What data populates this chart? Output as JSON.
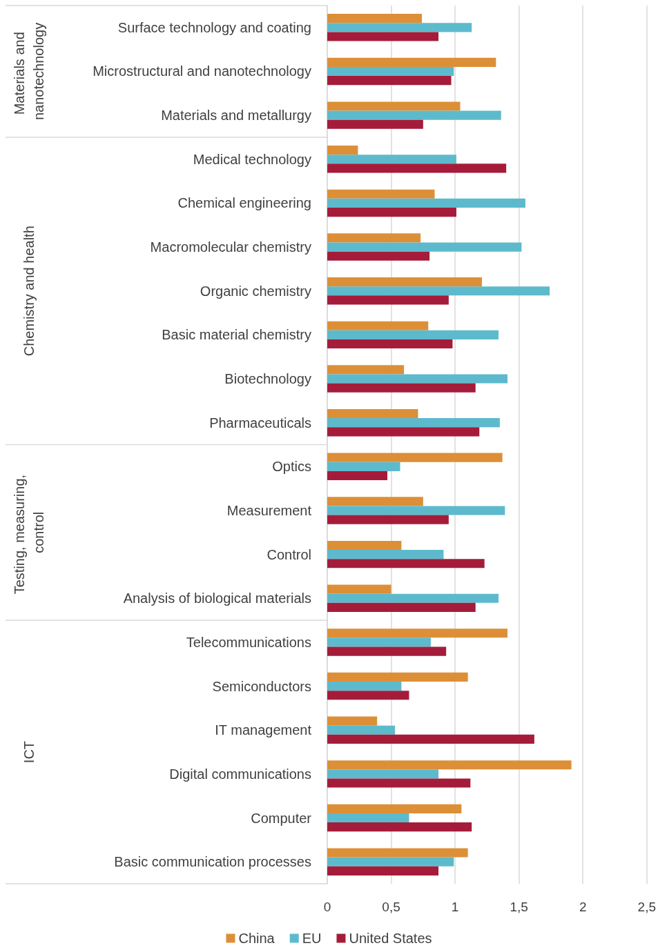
{
  "chart_data": {
    "type": "bar",
    "orientation": "horizontal",
    "categories": [
      "Surface technology and coating",
      "Microstructural and nanotechnology",
      "Materials and metallurgy",
      "Medical technology",
      "Chemical engineering",
      "Macromolecular chemistry",
      "Organic chemistry",
      "Basic material chemistry",
      "Biotechnology",
      "Pharmaceuticals",
      "Optics",
      "Measurement",
      "Control",
      "Analysis of biological materials",
      "Telecommunications",
      "Semiconductors",
      "IT management",
      "Digital communications",
      "Computer",
      "Basic communication processes"
    ],
    "series": [
      {
        "name": "China",
        "color": "#dd8f37",
        "values": [
          0.74,
          1.32,
          1.04,
          0.24,
          0.84,
          0.73,
          1.21,
          0.79,
          0.6,
          0.71,
          1.37,
          0.75,
          0.58,
          0.5,
          1.41,
          1.1,
          0.39,
          1.91,
          1.05,
          1.1
        ]
      },
      {
        "name": "EU",
        "color": "#5dbacd",
        "values": [
          1.13,
          0.99,
          1.36,
          1.01,
          1.55,
          1.52,
          1.74,
          1.34,
          1.41,
          1.35,
          0.57,
          1.39,
          0.91,
          1.34,
          0.81,
          0.58,
          0.53,
          0.87,
          0.64,
          0.99
        ]
      },
      {
        "name": "United States",
        "color": "#a51c3a",
        "values": [
          0.87,
          0.97,
          0.75,
          1.4,
          1.01,
          0.8,
          0.95,
          0.98,
          1.16,
          1.19,
          0.47,
          0.95,
          1.23,
          1.16,
          0.93,
          0.64,
          1.62,
          1.12,
          1.13,
          0.87
        ]
      }
    ],
    "xlim": [
      0,
      2.5
    ],
    "xticks": [
      0,
      {
        "value": 0.5,
        "label": "0,5"
      },
      1,
      {
        "value": 1.5,
        "label": "1,5"
      },
      2,
      {
        "value": 2.5,
        "label": "2,5"
      }
    ],
    "annotations": [
      "Materials and nanotechnology",
      "Chemistry and health",
      "Testing, measuring, control",
      "ICT"
    ],
    "grid": "x",
    "legend": "bottom"
  }
}
